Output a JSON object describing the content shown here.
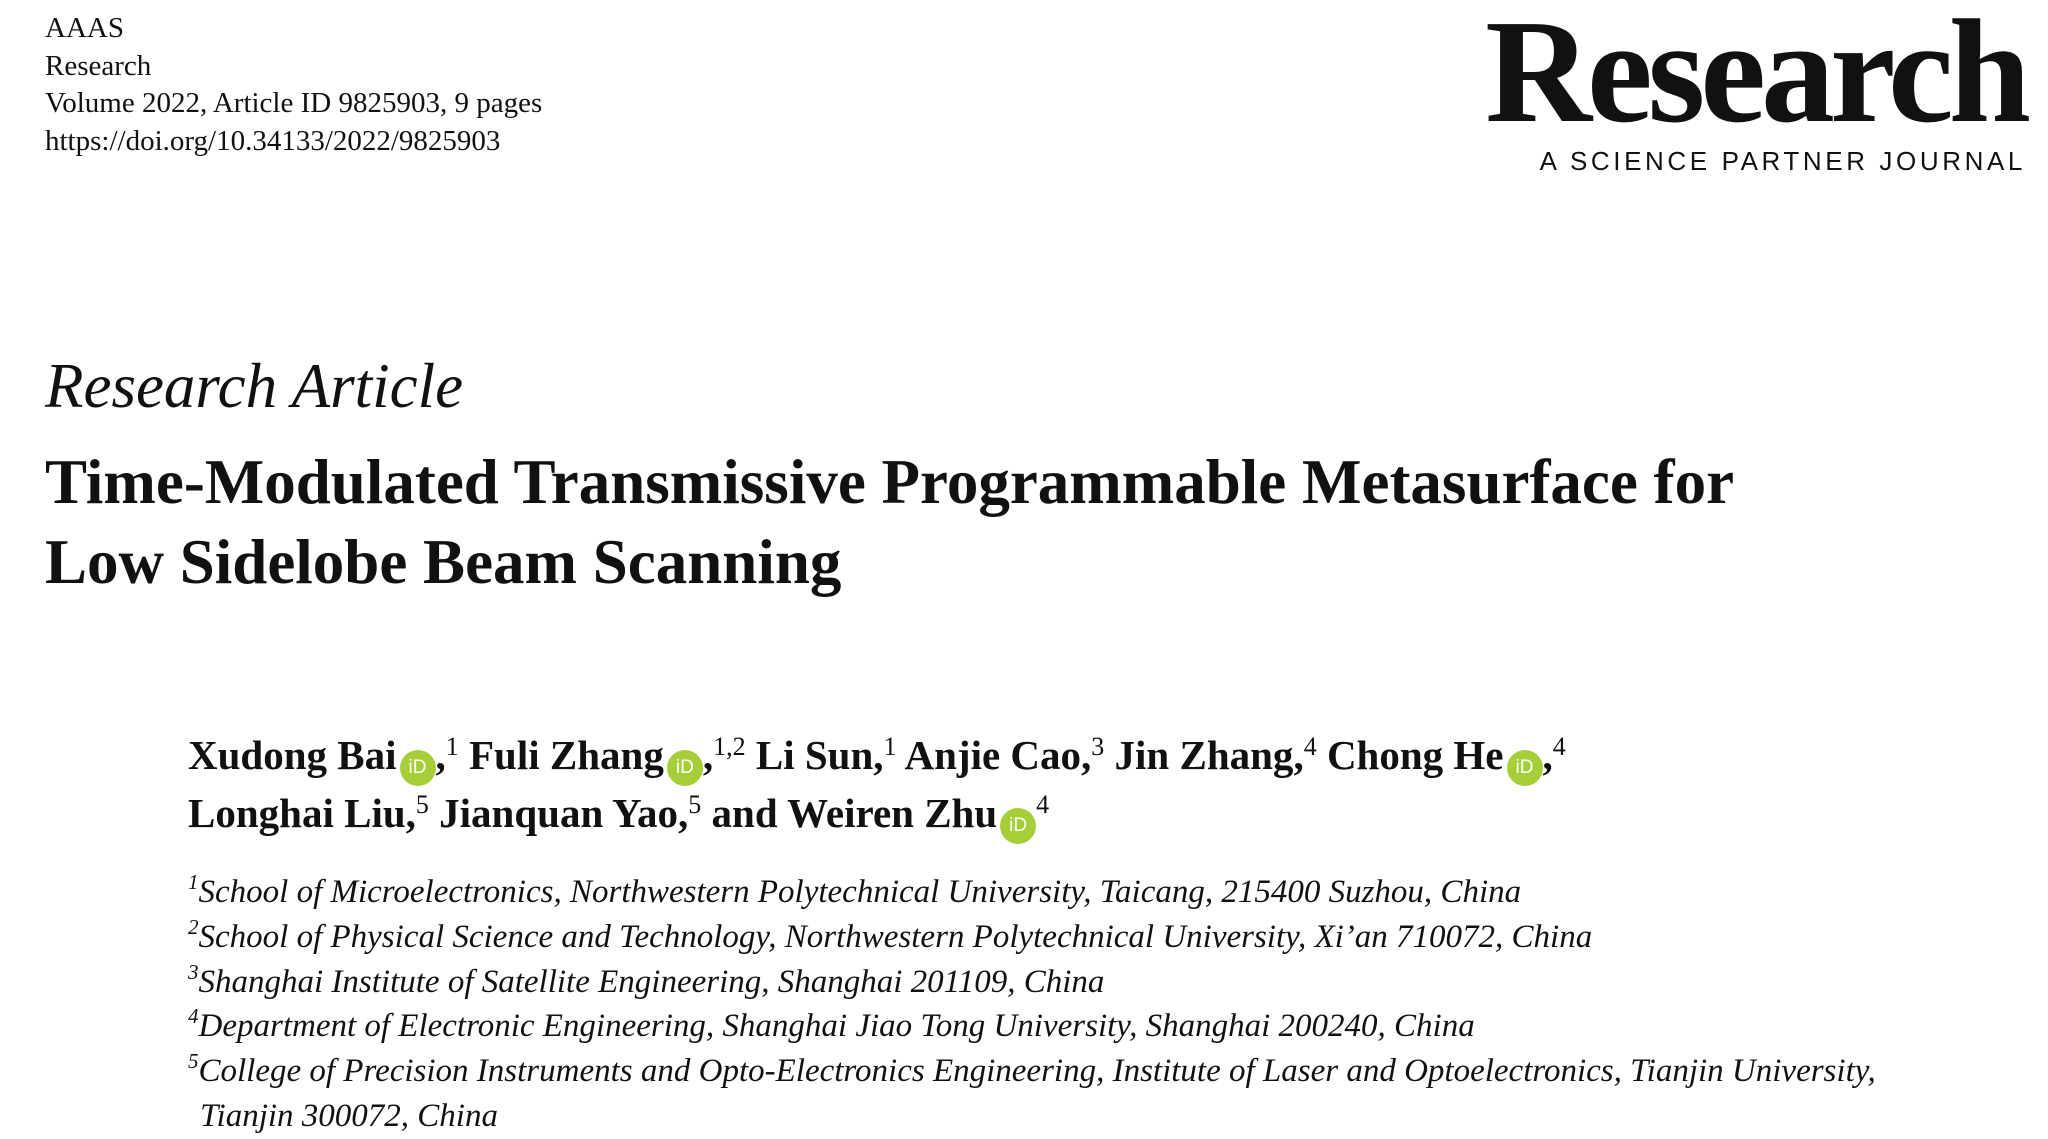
{
  "header": {
    "publisher": "AAAS",
    "journal": "Research",
    "volume_line": "Volume 2022, Article ID 9825903, 9 pages",
    "doi": "https://doi.org/10.34133/2022/9825903"
  },
  "logo": {
    "word": "Research",
    "tagline": "A SCIENCE PARTNER JOURNAL"
  },
  "article_type": "Research Article",
  "title_lines": [
    "Time-Modulated Transmissive Programmable Metasurface for",
    "Low Sidelobe Beam Scanning"
  ],
  "orcid_label": "iD",
  "orcid_color": "#a6ce39",
  "authors": [
    {
      "name": "Xudong Bai",
      "orcid": true,
      "sep": ",",
      "aff": "1"
    },
    {
      "name": "Fuli Zhang",
      "orcid": true,
      "sep": ",",
      "aff": "1,2"
    },
    {
      "name": "Li Sun",
      "orcid": false,
      "sep": ",",
      "aff": "1"
    },
    {
      "name": "Anjie Cao",
      "orcid": false,
      "sep": ",",
      "aff": "3"
    },
    {
      "name": "Jin Zhang",
      "orcid": false,
      "sep": ",",
      "aff": "4"
    },
    {
      "name": "Chong He",
      "orcid": true,
      "sep": ",",
      "aff": "4"
    },
    {
      "name": "Longhai Liu",
      "orcid": false,
      "sep": ",",
      "aff": "5"
    },
    {
      "name": "Jianquan Yao",
      "orcid": false,
      "sep": ",",
      "aff": "5"
    },
    {
      "name": "and Weiren Zhu",
      "orcid": true,
      "sep": "",
      "aff": "4"
    }
  ],
  "affiliations": [
    {
      "num": "1",
      "text": "School of Microelectronics, Northwestern Polytechnical University, Taicang, 215400 Suzhou, China"
    },
    {
      "num": "2",
      "text": "School of Physical Science and Technology, Northwestern Polytechnical University, Xi’an 710072, China"
    },
    {
      "num": "3",
      "text": "Shanghai Institute of Satellite Engineering, Shanghai 201109, China"
    },
    {
      "num": "4",
      "text": "Department of Electronic Engineering, Shanghai Jiao Tong University, Shanghai 200240, China"
    },
    {
      "num": "5",
      "text": "College of Precision Instruments and Opto-Electronics Engineering, Institute of Laser and Optoelectronics, Tianjin University,",
      "cont": "Tianjin 300072, China"
    }
  ]
}
